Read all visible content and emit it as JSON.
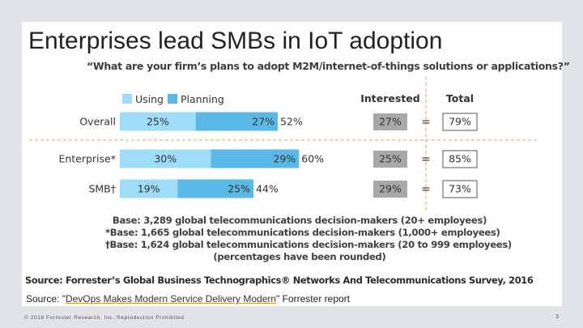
{
  "slide": {
    "title": "Enterprises lead SMBs in IoT adoption",
    "report_source": {
      "prefix": "Source: \"",
      "link_text": "DevOps Makes Modern Service Delivery Modern",
      "suffix": "\" Forrester report"
    },
    "copyright": "© 2016 Forrester Research, Inc. Reproduction Prohibited",
    "page_number": "3"
  },
  "colors": {
    "using": "#9fdcf7",
    "planning": "#5ab8e6",
    "interested_box": "#a8a8a8",
    "dashed_line": "#f0b26e"
  },
  "chart_data": {
    "type": "bar",
    "stacked": true,
    "orientation": "horizontal",
    "title": "“What are your firm’s plans to adopt M2M/internet-of-things solutions or applications?”",
    "legend": [
      "Using",
      "Planning"
    ],
    "legend_position": "top-left",
    "categories": [
      "Overall",
      "Enterprise*",
      "SMB†"
    ],
    "series": [
      {
        "name": "Using",
        "values": [
          25,
          30,
          19
        ],
        "labels": [
          "25%",
          "30%",
          "19%"
        ]
      },
      {
        "name": "Planning",
        "values": [
          27,
          29,
          25
        ],
        "labels": [
          "27%",
          "29%",
          "25%"
        ]
      }
    ],
    "totals": [
      "52%",
      "60%",
      "44%"
    ],
    "total_values": [
      52,
      60,
      44
    ],
    "columns": {
      "interested": "Interested",
      "total": "Total",
      "equals": "="
    },
    "interested": [
      "27%",
      "25%",
      "29%"
    ],
    "grand_total": [
      "79%",
      "85%",
      "73%"
    ],
    "xlim": [
      0,
      100
    ],
    "notes": [
      "Base: 3,289 global telecommunications decision-makers (20+ employees)",
      "*Base: 1,665 global telecommunications decision-makers (1,000+ employees)",
      "†Base: 1,624 global telecommunications decision-makers (20 to 999 employees)",
      "(percentages have been rounded)"
    ],
    "source": "Source: Forrester’s Global Business Technographics® Networks And Telecommunications Survey, 2016"
  }
}
